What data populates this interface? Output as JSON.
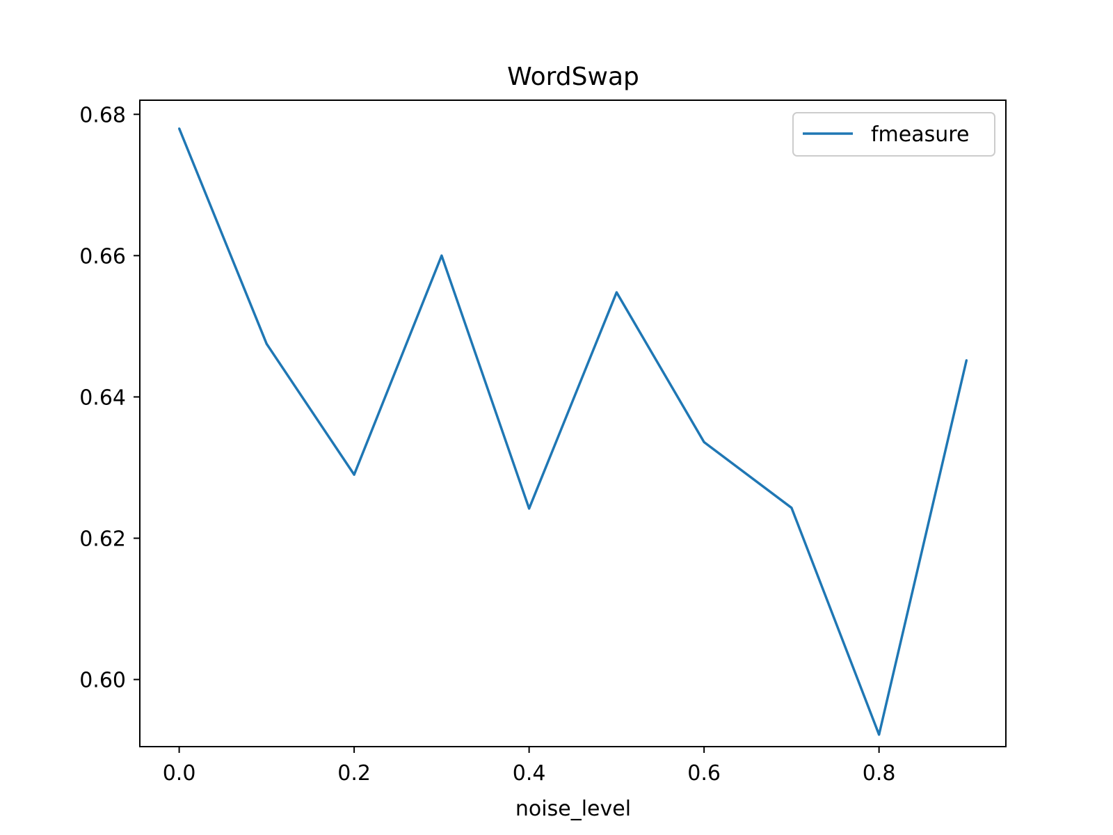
{
  "chart_data": {
    "type": "line",
    "title": "WordSwap",
    "xlabel": "noise_level",
    "ylabel": "",
    "x": [
      0.0,
      0.1,
      0.2,
      0.3,
      0.4,
      0.5,
      0.6,
      0.7,
      0.8,
      0.9
    ],
    "series": [
      {
        "name": "fmeasure",
        "color": "#1f77b4",
        "values": [
          0.678,
          0.6475,
          0.629,
          0.66,
          0.6242,
          0.6548,
          0.6336,
          0.6243,
          0.5922,
          0.6452
        ]
      }
    ],
    "xlim": [
      -0.045,
      0.945
    ],
    "ylim": [
      0.5905,
      0.682
    ],
    "xticks": [
      0.0,
      0.2,
      0.4,
      0.6,
      0.8
    ],
    "xtick_labels": [
      "0.0",
      "0.2",
      "0.4",
      "0.6",
      "0.8"
    ],
    "yticks": [
      0.6,
      0.62,
      0.64,
      0.66,
      0.68
    ],
    "ytick_labels": [
      "0.60",
      "0.62",
      "0.64",
      "0.66",
      "0.68"
    ],
    "grid": false,
    "legend_position": "top-right"
  }
}
